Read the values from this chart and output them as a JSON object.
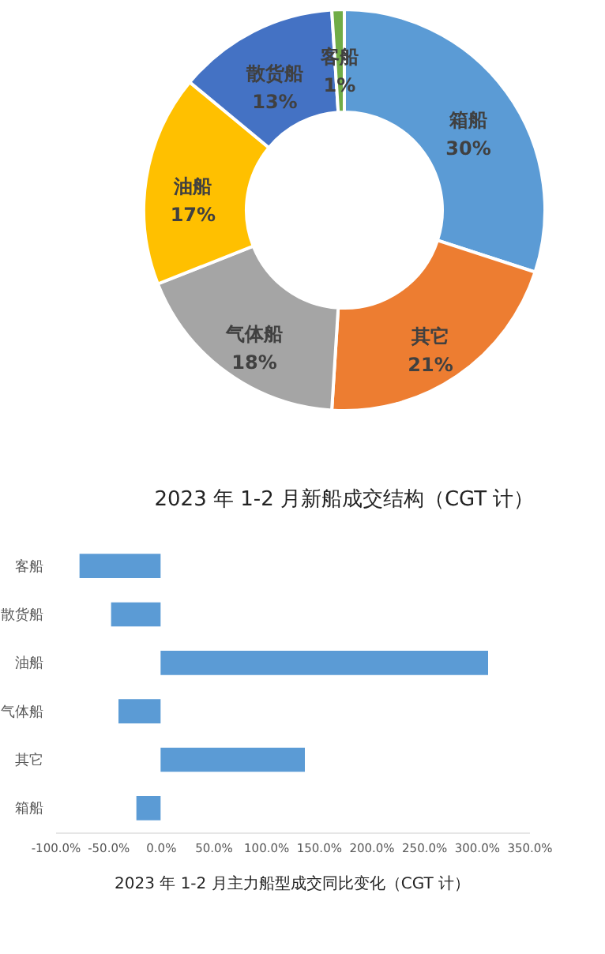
{
  "chart_data": [
    {
      "type": "donut",
      "title": "2023 年 1-2 月新船成交结构（CGT 计）",
      "categories": [
        "箱船",
        "其它",
        "气体船",
        "油船",
        "散货船",
        "客船"
      ],
      "values": [
        30,
        21,
        18,
        17,
        13,
        1
      ],
      "colors": [
        "#5b9bd5",
        "#ed7d31",
        "#a5a5a5",
        "#ffc000",
        "#4472c4",
        "#70ad47"
      ],
      "value_labels": [
        "30%",
        "21%",
        "18%",
        "17%",
        "13%",
        "1%"
      ],
      "legend": false
    },
    {
      "type": "bar",
      "orientation": "horizontal",
      "title": "2023 年 1-2 月主力船型成交同比变化（CGT 计）",
      "categories": [
        "客船",
        "散货船",
        "油船",
        "气体船",
        "其它",
        "箱船"
      ],
      "series": [
        {
          "color": "#5b9bd5",
          "values": [
            -77,
            -47,
            311,
            -40,
            137,
            -23
          ]
        }
      ],
      "xlim": [
        -100,
        350
      ],
      "xticks": [
        {
          "value": -100,
          "label": "-100.0%"
        },
        {
          "value": -50,
          "label": "-50.0%"
        },
        {
          "value": 0,
          "label": "0.0%"
        },
        {
          "value": 50,
          "label": "50.0%"
        },
        {
          "value": 100,
          "label": "100.0%"
        },
        {
          "value": 150,
          "label": "150.0%"
        },
        {
          "value": 200,
          "label": "200.0%"
        },
        {
          "value": 250,
          "label": "250.0%"
        },
        {
          "value": 300,
          "label": "300.0%"
        },
        {
          "value": 350,
          "label": "350.0%"
        }
      ],
      "grid": false,
      "legend": false
    }
  ]
}
